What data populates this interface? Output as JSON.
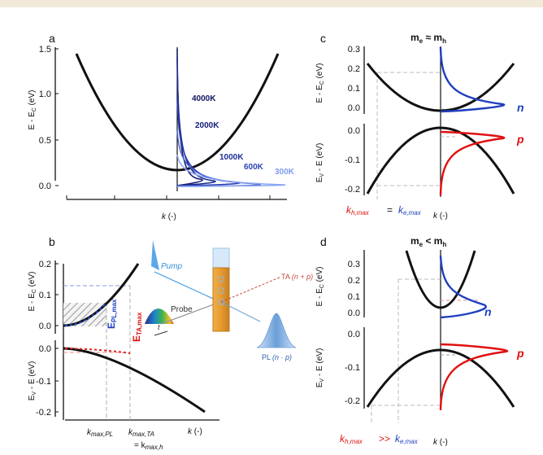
{
  "panels": {
    "a": {
      "label": "a",
      "ylabel": "E - E",
      "ylabel_sub": "C",
      "ylabel_unit": " (eV)",
      "yticks": [
        "1.5",
        "1.0",
        "0.5",
        "0.0"
      ],
      "xlabel": "k",
      "xlabel_unit": " (-)",
      "temps": [
        "4000K",
        "2000K",
        "1000K",
        "600K",
        "300K"
      ]
    },
    "b": {
      "label": "b",
      "top_ylabel": "E - E",
      "top_ylabel_sub": "C",
      "top_ylabel_unit": " (eV)",
      "top_yticks": [
        "0.2",
        "0.1",
        "0.0"
      ],
      "bot_ylabel": "E",
      "bot_ylabel_sub": "V",
      "bot_ylabel_rest": " - E (eV)",
      "bot_yticks": [
        "0.0",
        "-0.1",
        "-0.2"
      ],
      "epl": "E",
      "epl_sub": "PL,max",
      "eta": "E",
      "eta_sub": "TA,max",
      "kpl": "k",
      "kpl_sub": "max,PL",
      "kta": "k",
      "kta_sub": "max,TA",
      "kh_eq": "= k",
      "kh_sub": "max,h",
      "xlabel": "k",
      "xlabel_unit": " (-)",
      "pump": "Pump",
      "probe": "Probe",
      "t": "t",
      "ta": "TA",
      "ta_expr": "(n + p)",
      "pl": "PL",
      "pl_expr": "(n · p)"
    },
    "c": {
      "label": "c",
      "title_m1": "m",
      "title_s1": "e",
      "title_rel": " ≈ m",
      "title_s2": "h",
      "top_ylabel": "E - E",
      "top_ylabel_sub": "C",
      "top_ylabel_unit": " (eV)",
      "top_yticks": [
        "0.3",
        "0.2",
        "0.1",
        "0.0"
      ],
      "bot_ylabel": "E",
      "bot_ylabel_sub": "V",
      "bot_ylabel_rest": " - E (eV)",
      "bot_yticks": [
        "0.0",
        "-0.1",
        "-0.2"
      ],
      "n": "n",
      "p": "p",
      "kh": "k",
      "kh_sub": "h,max",
      "rel": " = ",
      "ke": "k",
      "ke_sub": "e,max",
      "xlabel": "k",
      "xlabel_unit": " (-)"
    },
    "d": {
      "label": "d",
      "title_m1": "m",
      "title_s1": "e",
      "title_rel": " < m",
      "title_s2": "h",
      "top_ylabel": "E - E",
      "top_ylabel_sub": "C",
      "top_ylabel_unit": " (eV)",
      "top_yticks": [
        "0.3",
        "0.2",
        "0.1",
        "0.0"
      ],
      "bot_ylabel": "E",
      "bot_ylabel_sub": "V",
      "bot_ylabel_rest": " - E (eV)",
      "bot_yticks": [
        "0.0",
        "-0.1",
        "-0.2"
      ],
      "n": "n",
      "p": "p",
      "kh": "k",
      "kh_sub": "h,max",
      "rel": " >> ",
      "ke": "k",
      "ke_sub": "e,max",
      "xlabel": "k",
      "xlabel_unit": " (-)"
    }
  },
  "colors": {
    "black": "#111111",
    "blue": "#1f3fbf",
    "red": "#e01010",
    "dark_navy": "#0e1460",
    "light_blue": "#7f9cf0",
    "grey_dash": "#b5b5b5",
    "hatch": "#9a9a9a",
    "cuvette": "#e8a33a"
  }
}
